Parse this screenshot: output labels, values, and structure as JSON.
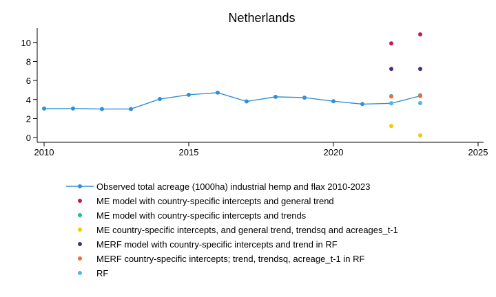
{
  "chart_data": {
    "type": "scatter",
    "title": "Netherlands",
    "xlabel": "",
    "ylabel": "",
    "xlim": [
      2010,
      2025
    ],
    "ylim": [
      -0.5,
      11.5
    ],
    "xticks": [
      2010,
      2015,
      2020,
      2025
    ],
    "yticks": [
      0,
      2,
      4,
      6,
      8,
      10
    ],
    "grid": false,
    "legend_position": "bottom",
    "series": [
      {
        "name": "Observed total acreage (1000ha) industrial hemp and flax 2010-2023",
        "kind": "line",
        "color": "#2f8fd8",
        "x": [
          2010,
          2011,
          2012,
          2013,
          2014,
          2015,
          2016,
          2017,
          2018,
          2019,
          2020,
          2021,
          2022,
          2023
        ],
        "y": [
          3.05,
          3.05,
          3.0,
          3.0,
          4.05,
          4.5,
          4.72,
          3.8,
          4.28,
          4.2,
          3.82,
          3.52,
          3.6,
          4.38
        ]
      },
      {
        "name": "ME model with country-specific intercepts and general trend",
        "kind": "points",
        "color": "#c2185b",
        "x": [
          2022,
          2023
        ],
        "y": [
          9.9,
          10.85
        ]
      },
      {
        "name": "ME model with country-specific intercepts and trends",
        "kind": "points",
        "color": "#1fbf8f",
        "x": [
          2022,
          2023
        ],
        "y": [
          4.35,
          4.45
        ]
      },
      {
        "name": "ME country-specific intercepts, and general trend, trendsq and acreages_t-1",
        "kind": "points",
        "color": "#f5c800",
        "x": [
          2022,
          2023
        ],
        "y": [
          1.22,
          0.22
        ]
      },
      {
        "name": "MERF model with country-specific intercepts and trend in RF",
        "kind": "points",
        "color": "#4b2c85",
        "x": [
          2022,
          2023
        ],
        "y": [
          7.22,
          7.22
        ]
      },
      {
        "name": "MERF country-specific intercepts; trend, trendsq, acreage_t-1 in RF",
        "kind": "points",
        "color": "#ef6c3a",
        "x": [
          2022,
          2023
        ],
        "y": [
          4.32,
          4.38
        ]
      },
      {
        "name": "RF",
        "kind": "points",
        "color": "#56b4e9",
        "x": [
          2022,
          2023
        ],
        "y": [
          3.6,
          3.62
        ]
      }
    ]
  }
}
